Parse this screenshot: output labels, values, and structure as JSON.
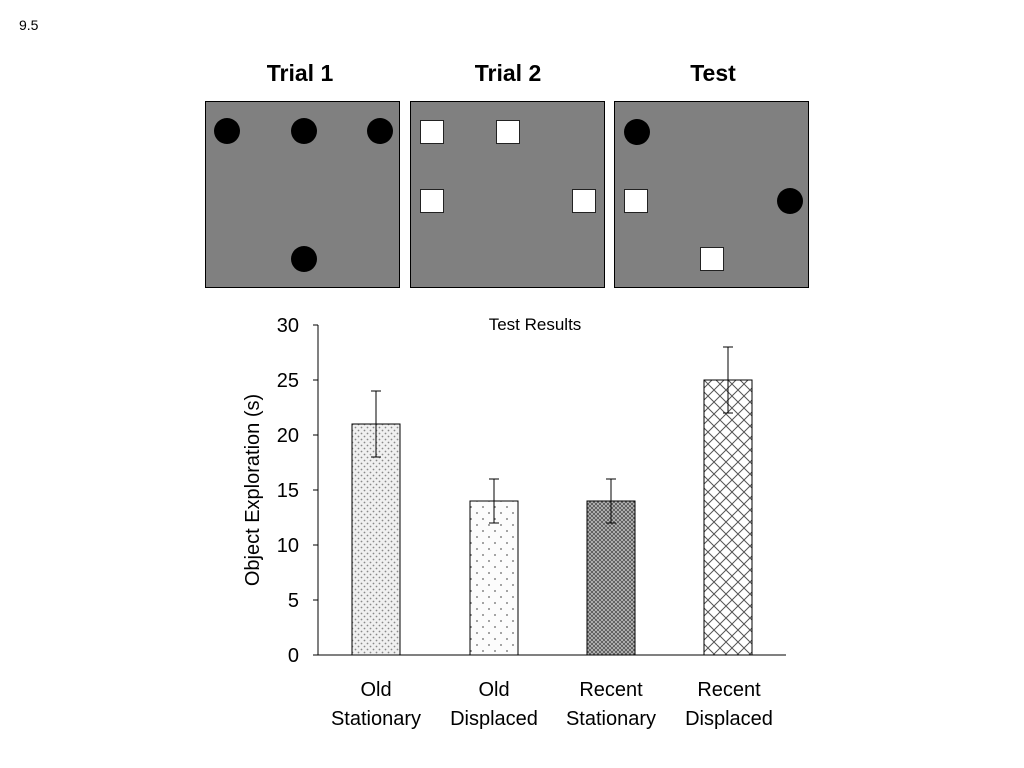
{
  "slide_number": "9.5",
  "panels": [
    {
      "title": "Trial 1",
      "objects": [
        "circle",
        "circle",
        "circle",
        "circle"
      ]
    },
    {
      "title": "Trial 2",
      "objects": [
        "square",
        "square",
        "square",
        "square"
      ]
    },
    {
      "title": "Test",
      "objects": [
        "circle",
        "square",
        "circle",
        "square"
      ]
    }
  ],
  "chart_data": {
    "type": "bar",
    "title": "Test Results",
    "ylabel": "Object Exploration (s)",
    "xlabel": "",
    "categories": [
      {
        "line1": "Old",
        "line2": "Stationary"
      },
      {
        "line1": "Old",
        "line2": "Displaced"
      },
      {
        "line1": "Recent",
        "line2": "Stationary"
      },
      {
        "line1": "Recent",
        "line2": "Displaced"
      }
    ],
    "values": [
      21,
      14,
      14,
      25
    ],
    "errors": [
      3,
      2,
      2,
      3
    ],
    "ylim": [
      0,
      30
    ],
    "yticks": [
      0,
      5,
      10,
      15,
      20,
      25,
      30
    ],
    "patterns": [
      "fine-stipple",
      "sparse-dots",
      "dense-crosshatch",
      "open-crosshatch"
    ],
    "grid": false,
    "legend": "none"
  }
}
